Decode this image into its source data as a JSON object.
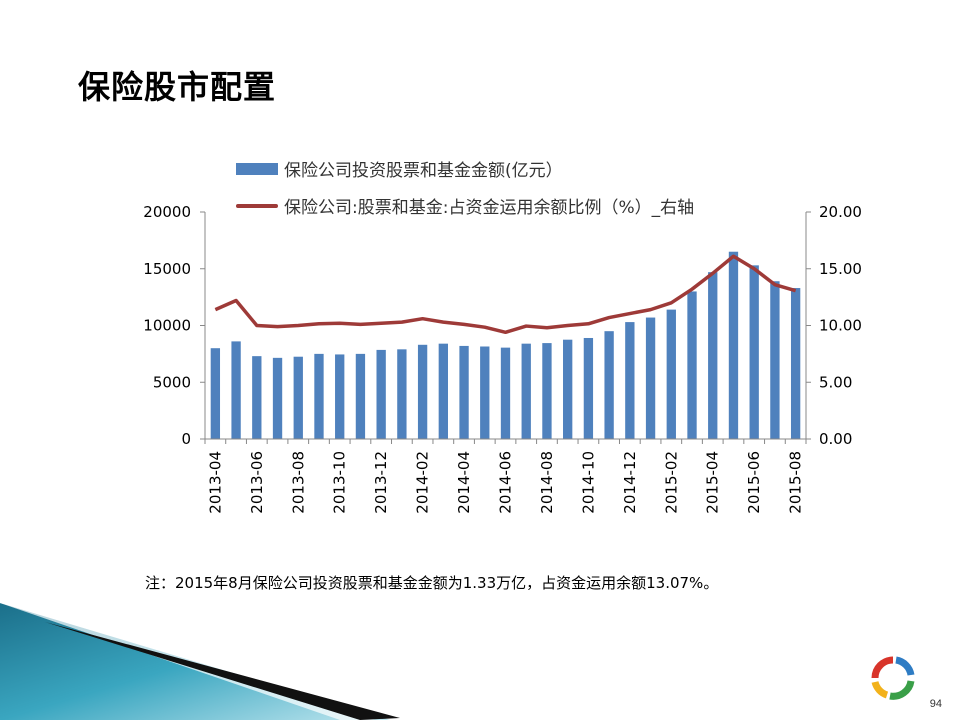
{
  "slide": {
    "title": "保险股市配置",
    "note": "注：2015年8月保险公司投资股票和基金金额为1.33万亿，占资金运用余额13.07%。",
    "page_number": "94",
    "logo_icon": "ring-logo-icon"
  },
  "colors": {
    "bar": "#4F81BD",
    "line": "#9E3A38"
  },
  "chart_data": {
    "type": "bar",
    "title": "",
    "xlabel": "",
    "ylabel": "",
    "x": [
      "2013-04",
      "2013-05",
      "2013-06",
      "2013-07",
      "2013-08",
      "2013-09",
      "2013-10",
      "2013-11",
      "2013-12",
      "2014-01",
      "2014-02",
      "2014-03",
      "2014-04",
      "2014-05",
      "2014-06",
      "2014-07",
      "2014-08",
      "2014-09",
      "2014-10",
      "2014-11",
      "2014-12",
      "2015-01",
      "2015-02",
      "2015-03",
      "2015-04",
      "2015-05",
      "2015-06",
      "2015-07",
      "2015-08"
    ],
    "x_tick_labels": [
      "2013-04",
      "2013-06",
      "2013-08",
      "2013-10",
      "2013-12",
      "2014-02",
      "2014-04",
      "2014-06",
      "2014-08",
      "2014-10",
      "2014-12",
      "2015-02",
      "2015-04",
      "2015-06",
      "2015-08"
    ],
    "series": [
      {
        "name": "保险公司投资股票和基金金额(亿元）",
        "type": "bar",
        "axis": "left",
        "values": [
          8000,
          8600,
          7300,
          7150,
          7250,
          7500,
          7450,
          7500,
          7850,
          7900,
          8300,
          8400,
          8200,
          8150,
          8050,
          8400,
          8450,
          8750,
          8900,
          9500,
          10300,
          10700,
          11400,
          13000,
          14700,
          16500,
          15300,
          13900,
          13300
        ]
      },
      {
        "name": "保险公司:股票和基金:占资金运用余额比例（%）_右轴",
        "type": "line",
        "axis": "right",
        "values": [
          11.4,
          12.2,
          10.0,
          9.9,
          10.0,
          10.15,
          10.2,
          10.1,
          10.2,
          10.3,
          10.6,
          10.3,
          10.1,
          9.85,
          9.4,
          9.95,
          9.8,
          10.0,
          10.15,
          10.7,
          11.05,
          11.4,
          12.0,
          13.2,
          14.6,
          16.1,
          15.0,
          13.6,
          13.07
        ]
      }
    ],
    "y_left": {
      "range": [
        0,
        20000
      ],
      "ticks": [
        "0",
        "5000",
        "10000",
        "15000",
        "20000"
      ]
    },
    "y_right": {
      "range": [
        0,
        20
      ],
      "ticks": [
        "0.00",
        "5.00",
        "10.00",
        "15.00",
        "20.00"
      ]
    },
    "grid": false,
    "legend_position": "top"
  }
}
